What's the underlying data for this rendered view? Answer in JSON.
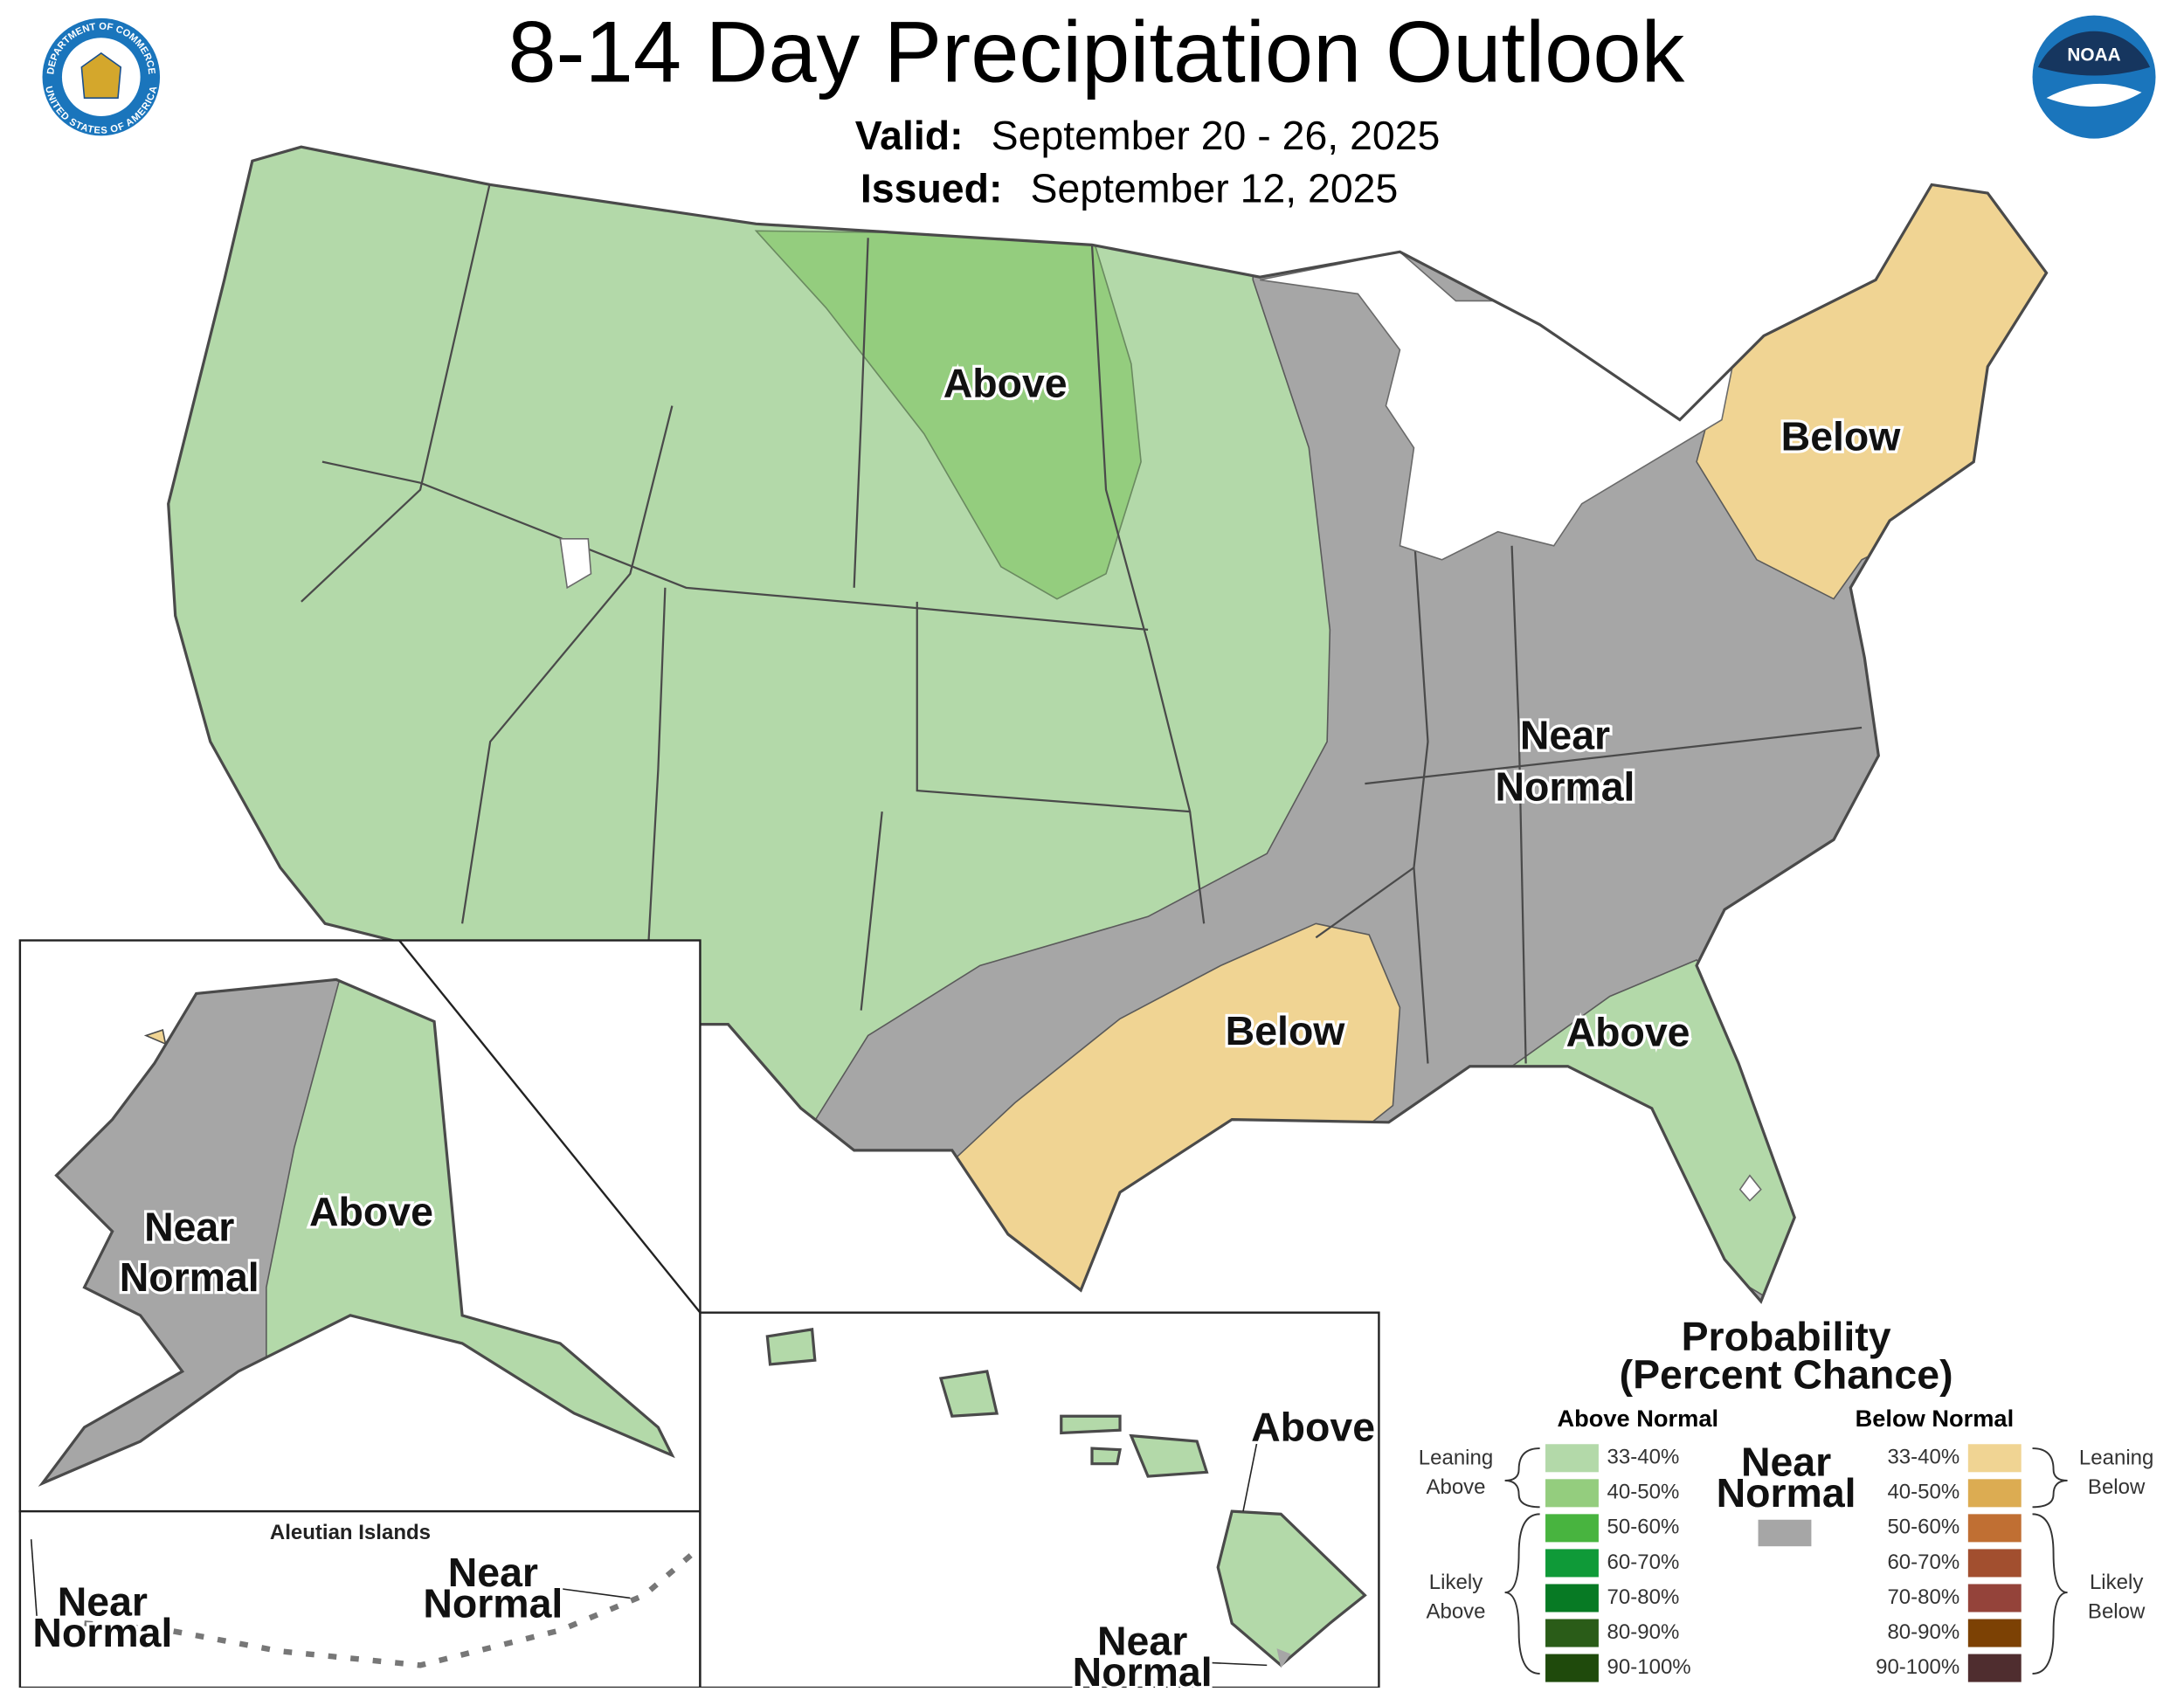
{
  "header": {
    "title": "8-14 Day Precipitation Outlook",
    "valid_label": "Valid:",
    "valid": "September 20 - 26, 2025",
    "issued_label": "Issued:",
    "issued": "September 12, 2025"
  },
  "logos": {
    "left_top": "DEPARTMENT OF COMMERCE",
    "left_bottom": "UNITED STATES OF AMERICA",
    "right": "NOAA"
  },
  "conus_labels": [
    {
      "lines": [
        "Above"
      ]
    },
    {
      "lines": [
        "Below"
      ]
    },
    {
      "lines": [
        "Near",
        "Normal"
      ]
    },
    {
      "lines": [
        "Below"
      ]
    },
    {
      "lines": [
        "Above"
      ]
    }
  ],
  "alaska": {
    "labels": [
      {
        "lines": [
          "Near",
          "Normal"
        ]
      },
      {
        "lines": [
          "Above"
        ]
      }
    ]
  },
  "aleutians": {
    "title": "Aleutian Islands",
    "labels": [
      {
        "lines": [
          "Near",
          "Normal"
        ]
      },
      {
        "lines": [
          "Near",
          "Normal"
        ]
      }
    ]
  },
  "hawaii": {
    "labels": [
      {
        "lines": [
          "Above"
        ]
      },
      {
        "lines": [
          "Near",
          "Normal"
        ]
      }
    ]
  },
  "legend": {
    "title": [
      "Probability",
      "(Percent Chance)"
    ],
    "above_header": "Above Normal",
    "below_header": "Below Normal",
    "near": {
      "lines": [
        "Near",
        "Normal"
      ],
      "color": "#a6a6a6"
    },
    "leaning_above": [
      "Leaning",
      "Above"
    ],
    "likely_above": [
      "Likely",
      "Above"
    ],
    "leaning_below": [
      "Leaning",
      "Below"
    ],
    "likely_below": [
      "Likely",
      "Below"
    ],
    "above_items": [
      {
        "label": "33-40%",
        "color": "#b3d9a9"
      },
      {
        "label": "40-50%",
        "color": "#94cd7e"
      },
      {
        "label": "50-60%",
        "color": "#48b43f"
      },
      {
        "label": "60-70%",
        "color": "#0f9a38"
      },
      {
        "label": "70-80%",
        "color": "#077a24"
      },
      {
        "label": "80-90%",
        "color": "#2a5c18"
      },
      {
        "label": "90-100%",
        "color": "#1f4a0c"
      }
    ],
    "below_items": [
      {
        "label": "33-40%",
        "color": "#f0d493"
      },
      {
        "label": "40-50%",
        "color": "#dcac52"
      },
      {
        "label": "50-60%",
        "color": "#c06f33"
      },
      {
        "label": "60-70%",
        "color": "#a24f2f"
      },
      {
        "label": "70-80%",
        "color": "#94433a"
      },
      {
        "label": "80-90%",
        "color": "#7c4104"
      },
      {
        "label": "90-100%",
        "color": "#4f2d2f"
      }
    ]
  }
}
